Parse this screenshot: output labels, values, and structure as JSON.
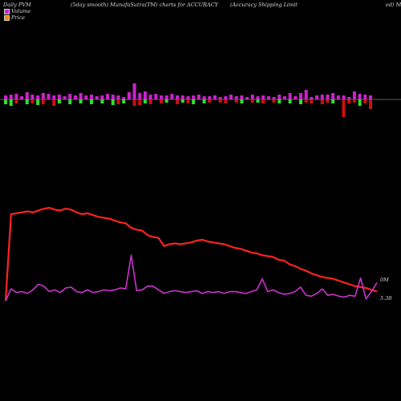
{
  "header": {
    "left": "Daily PVM",
    "mid": "(5day smooth) MunafaSutra(TM) charts for ACCURACY",
    "right": "(Accuracy Shipping Limit",
    "far_right": "ed) M"
  },
  "legend": [
    {
      "label": "Volume",
      "color": "#cc22cc"
    },
    {
      "label": "Price",
      "color": "#ff8800"
    }
  ],
  "right_labels": {
    "volume_tick": "0M",
    "price_tick": "5.38"
  },
  "chart_data": {
    "type": "line",
    "title": "Daily PVM",
    "volume_bars": {
      "up": [
        5,
        6,
        7,
        4,
        9,
        6,
        5,
        8,
        7,
        5,
        6,
        4,
        7,
        5,
        8,
        5,
        6,
        4,
        5,
        7,
        6,
        5,
        3,
        9,
        20,
        8,
        10,
        6,
        7,
        5,
        5,
        7,
        5,
        5,
        4,
        5,
        6,
        4,
        4,
        5,
        3,
        4,
        6,
        4,
        5,
        3,
        6,
        4,
        5,
        4,
        3,
        6,
        4,
        8,
        4,
        8,
        12,
        3,
        5,
        6,
        6,
        8,
        5,
        5,
        3,
        10,
        7,
        6,
        5
      ],
      "down": [
        6,
        8,
        5,
        0,
        6,
        5,
        7,
        6,
        0,
        8,
        5,
        0,
        6,
        0,
        5,
        0,
        6,
        0,
        5,
        0,
        7,
        6,
        5,
        0,
        8,
        7,
        5,
        6,
        0,
        5,
        4,
        0,
        6,
        4,
        5,
        6,
        0,
        5,
        4,
        0,
        4,
        5,
        0,
        4,
        5,
        0,
        4,
        4,
        5,
        0,
        4,
        5,
        0,
        5,
        0,
        6,
        4,
        5,
        0,
        6,
        4,
        5,
        0,
        22,
        5,
        4,
        8,
        5,
        12
      ],
      "down_colors": [
        "#33dd33",
        "#33dd33",
        "#cc1111",
        "#33dd33",
        "#33dd33",
        "#cc1111",
        "#33dd33",
        "#cc1111",
        "#33dd33",
        "#cc1111",
        "#33dd33",
        "#cc1111",
        "#33dd33",
        "#cc1111",
        "#33dd33",
        "#cc1111",
        "#33dd33",
        "#cc1111",
        "#33dd33",
        "#cc1111",
        "#33dd33",
        "#cc1111",
        "#33dd33",
        "#cc1111",
        "#cc1111",
        "#cc1111",
        "#33dd33",
        "#cc1111",
        "#33dd33",
        "#cc1111",
        "#33dd33",
        "#cc1111",
        "#cc1111",
        "#33dd33",
        "#cc1111",
        "#33dd33",
        "#cc1111",
        "#33dd33",
        "#cc1111",
        "#33dd33",
        "#cc1111",
        "#cc1111",
        "#33dd33",
        "#cc1111",
        "#33dd33",
        "#cc1111",
        "#cc1111",
        "#33dd33",
        "#cc1111",
        "#33dd33",
        "#cc1111",
        "#33dd33",
        "#cc1111",
        "#33dd33",
        "#cc1111",
        "#33dd33",
        "#cc1111",
        "#cc1111",
        "#33dd33",
        "#cc1111",
        "#cc1111",
        "#33dd33",
        "#cc1111",
        "#cc1111",
        "#cc1111",
        "#cc1111",
        "#33dd33",
        "#cc1111",
        "#cc1111"
      ]
    },
    "series": [
      {
        "color": "#ff2222",
        "values": [
          0.0,
          95,
          96,
          97,
          98,
          97,
          99,
          101,
          102,
          100,
          99,
          101,
          100,
          97,
          95,
          96,
          94,
          92,
          91,
          90,
          88,
          86,
          85,
          80,
          78,
          77,
          72,
          70,
          69,
          60,
          62,
          63,
          62,
          63,
          64,
          66,
          67,
          65,
          64,
          63,
          62,
          60,
          58,
          57,
          55,
          53,
          52,
          50,
          49,
          48,
          45,
          44,
          40,
          38,
          35,
          33,
          30,
          28,
          26,
          25,
          24,
          22,
          20,
          18,
          16,
          15,
          14,
          12,
          10
        ]
      },
      {
        "color": "#cc33cc",
        "values": [
          0.0,
          13,
          9,
          10,
          8,
          12,
          18,
          16,
          10,
          12,
          9,
          14,
          15,
          10,
          9,
          12,
          9,
          10,
          12,
          11,
          12,
          14,
          13,
          50,
          11,
          12,
          16,
          16,
          12,
          8,
          10,
          11,
          10,
          9,
          10,
          11,
          8,
          10,
          9,
          10,
          8,
          10,
          10,
          9,
          8,
          10,
          12,
          24,
          10,
          12,
          9,
          7,
          8,
          10,
          15,
          6,
          5,
          8,
          13,
          6,
          7,
          5,
          4,
          6,
          5,
          25,
          2,
          10,
          20
        ]
      }
    ]
  }
}
